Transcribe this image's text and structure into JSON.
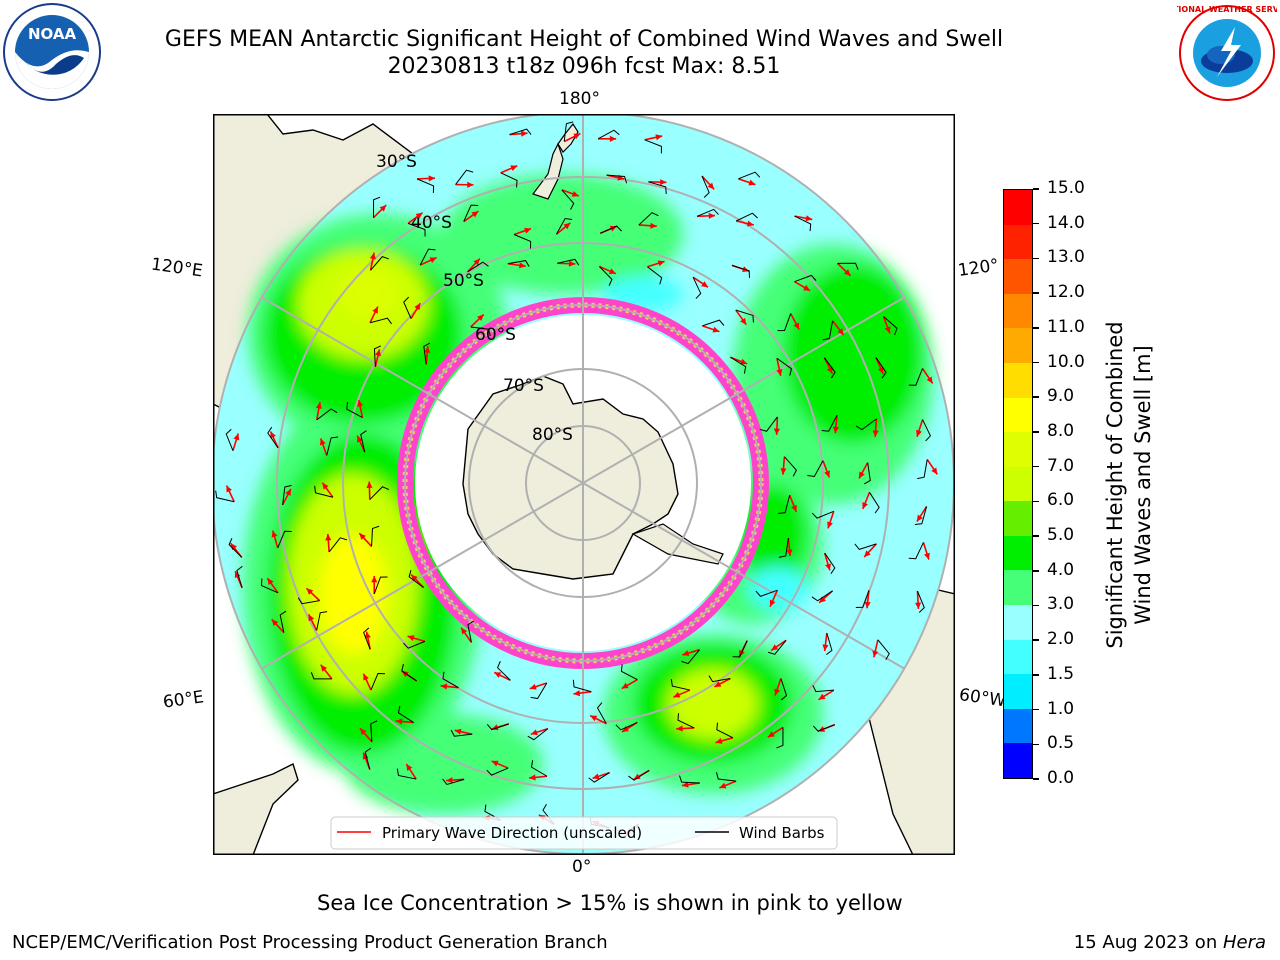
{
  "header": {
    "title_line1": "GEFS MEAN Antarctic Significant Height of Combined Wind Waves and Swell",
    "title_line2": "20230813 t18z 096h fcst   Max: 8.51"
  },
  "logos": {
    "left_text": "NOAA",
    "right_text": "NATIONAL WEATHER SERVICE"
  },
  "map": {
    "longitude_labels": {
      "top": "180°",
      "bottom": "0°",
      "left_upper": "120°E",
      "left_lower": "60°E",
      "right_upper": "120°",
      "right_lower": "60°W"
    },
    "latitude_labels": [
      "30°S",
      "40°S",
      "50°S",
      "60°S",
      "70°S",
      "80°S"
    ],
    "legend": {
      "wave_label": "Primary Wave Direction (unscaled)",
      "barb_label": "Wind Barbs",
      "wave_color": "#ff0000",
      "barb_color": "#000000"
    },
    "colors": {
      "land": "#efeddc",
      "ice_edge": "#ff44cc",
      "ice_inner": "#ffcc66"
    }
  },
  "colorbar": {
    "label_line1": "Significant Height of Combined",
    "label_line2": "Wind Waves and Swell [m]",
    "ticks": [
      "0.0",
      "0.5",
      "1.0",
      "1.5",
      "2.0",
      "3.0",
      "4.0",
      "5.0",
      "6.0",
      "7.0",
      "8.0",
      "9.0",
      "10.0",
      "11.0",
      "12.0",
      "13.0",
      "14.0",
      "15.0"
    ],
    "colors": [
      "#0000ff",
      "#0077ff",
      "#00eeff",
      "#44ffff",
      "#99ffff",
      "#44ff77",
      "#00ee00",
      "#66ee00",
      "#ccff00",
      "#ddff00",
      "#ffff00",
      "#ffdd00",
      "#ffaa00",
      "#ff8800",
      "#ff5500",
      "#ff2200",
      "#ff0000"
    ]
  },
  "notes": {
    "sea_ice": "Sea Ice Concentration > 15% is shown in pink to yellow"
  },
  "footer": {
    "left": "NCEP/EMC/Verification Post Processing Product Generation Branch",
    "date": "15 Aug 2023 on ",
    "machine": "Hera"
  }
}
